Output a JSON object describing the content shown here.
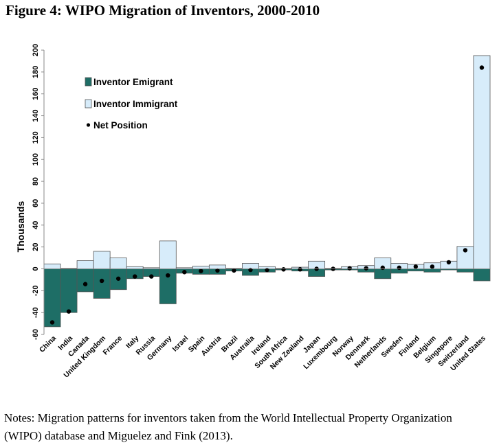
{
  "figure": {
    "title": "Figure 4: WIPO Migration of Inventors, 2000-2010",
    "notes": "Notes: Migration patterns for inventors taken from the World Intellectual Property Organization (WIPO) database and Miguelez and Fink (2013)."
  },
  "colors": {
    "emigrant": "#1e6e66",
    "immigrant": "#d7ecfa",
    "net": "#000000",
    "bar_edge": "#555555"
  },
  "chart_data": {
    "type": "bar",
    "ylabel": "Thousands",
    "xlabel": "",
    "ylim": [
      -60,
      200
    ],
    "yticks": [
      -60,
      -40,
      -20,
      0,
      20,
      40,
      60,
      80,
      100,
      120,
      140,
      160,
      180,
      200
    ],
    "grid": false,
    "legend_position": "top-left",
    "categories": [
      "China",
      "India",
      "Canada",
      "United Kingdom",
      "France",
      "Italy",
      "Russia",
      "Germany",
      "Israel",
      "Spain",
      "Austria",
      "Brazil",
      "Australia",
      "Ireland",
      "South Africa",
      "New Zealand",
      "Japan",
      "Luxembourg",
      "Norway",
      "Denmark",
      "Netherlands",
      "Sweden",
      "Finland",
      "Belgium",
      "Singapore",
      "Switzerland",
      "United States"
    ],
    "series": [
      {
        "name": "Inventor Emigrant",
        "kind": "bar",
        "values": [
          -53,
          -40,
          -21,
          -27,
          -19,
          -9,
          -7,
          -32,
          -4,
          -5,
          -5,
          -2,
          -6,
          -3,
          -1,
          -2,
          -7,
          -1,
          -1,
          -3,
          -9,
          -4,
          -2,
          -3,
          -1,
          -3,
          -11
        ]
      },
      {
        "name": "Inventor Immigrant",
        "kind": "bar",
        "values": [
          4.5,
          0.5,
          7.5,
          16,
          10,
          2,
          1,
          25.5,
          1,
          2.5,
          3.5,
          0.5,
          5,
          2,
          0.5,
          1.5,
          7,
          0.5,
          2,
          3,
          10,
          5,
          4,
          5.5,
          7,
          20.5,
          195
        ]
      },
      {
        "name": "Net Position",
        "kind": "point",
        "values": [
          -49,
          -39,
          -14,
          -11,
          -9,
          -7,
          -7,
          -6,
          -3,
          -2,
          -1.5,
          -1.5,
          -1,
          -1,
          -0.5,
          -0.5,
          0,
          0,
          0.5,
          0.5,
          1,
          1,
          2,
          2,
          6,
          17,
          184
        ]
      }
    ]
  }
}
